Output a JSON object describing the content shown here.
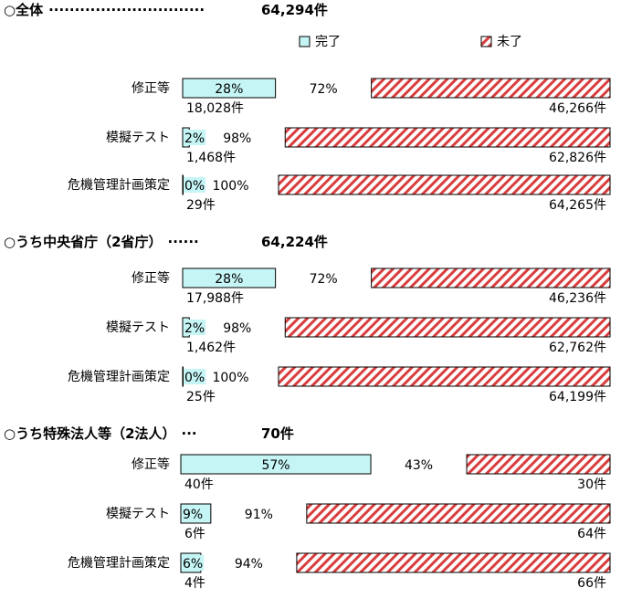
{
  "legend": {
    "items": [
      {
        "label": "完了",
        "color": "#c6f5f5",
        "pattern": "solid"
      },
      {
        "label": "未了",
        "color": "#d93d3d",
        "pattern": "hatch"
      }
    ]
  },
  "chart_data": [
    {
      "type": "bar",
      "stacked": true,
      "orientation": "horizontal",
      "title": "○全体",
      "dots": "······························",
      "total_label": "64,294件",
      "categories": [
        "修正等",
        "模擬テスト",
        "危機管理計画策定"
      ],
      "series": [
        {
          "name": "完了",
          "values": [
            28,
            2,
            0
          ],
          "counts": [
            "18,028件",
            "1,468件",
            "29件"
          ]
        },
        {
          "name": "未了",
          "values": [
            72,
            98,
            100
          ],
          "counts": [
            "46,266件",
            "62,826件",
            "64,265件"
          ]
        }
      ],
      "value_labels": {
        "done": [
          "28%",
          "2%",
          "0%"
        ],
        "undone": [
          "72%",
          "98%",
          "100%"
        ]
      }
    },
    {
      "type": "bar",
      "stacked": true,
      "orientation": "horizontal",
      "title": "○うち中央省庁（2省庁）",
      "dots": "······",
      "total_label": "64,224件",
      "categories": [
        "修正等",
        "模擬テスト",
        "危機管理計画策定"
      ],
      "series": [
        {
          "name": "完了",
          "values": [
            28,
            2,
            0
          ],
          "counts": [
            "17,988件",
            "1,462件",
            "25件"
          ]
        },
        {
          "name": "未了",
          "values": [
            72,
            98,
            100
          ],
          "counts": [
            "46,236件",
            "62,762件",
            "64,199件"
          ]
        }
      ],
      "value_labels": {
        "done": [
          "28%",
          "2%",
          "0%"
        ],
        "undone": [
          "72%",
          "98%",
          "100%"
        ]
      }
    },
    {
      "type": "bar",
      "stacked": true,
      "orientation": "horizontal",
      "title": "○うち特殊法人等（2法人）",
      "dots": "···",
      "total_label": "70件",
      "categories": [
        "修正等",
        "模擬テスト",
        "危機管理計画策定"
      ],
      "series": [
        {
          "name": "完了",
          "values": [
            57,
            9,
            6
          ],
          "counts": [
            "40件",
            "6件",
            "4件"
          ]
        },
        {
          "name": "未了",
          "values": [
            43,
            91,
            94
          ],
          "counts": [
            "30件",
            "64件",
            "66件"
          ]
        }
      ],
      "value_labels": {
        "done": [
          "57%",
          "9%",
          "6%"
        ],
        "undone": [
          "43%",
          "91%",
          "94%"
        ]
      }
    }
  ]
}
